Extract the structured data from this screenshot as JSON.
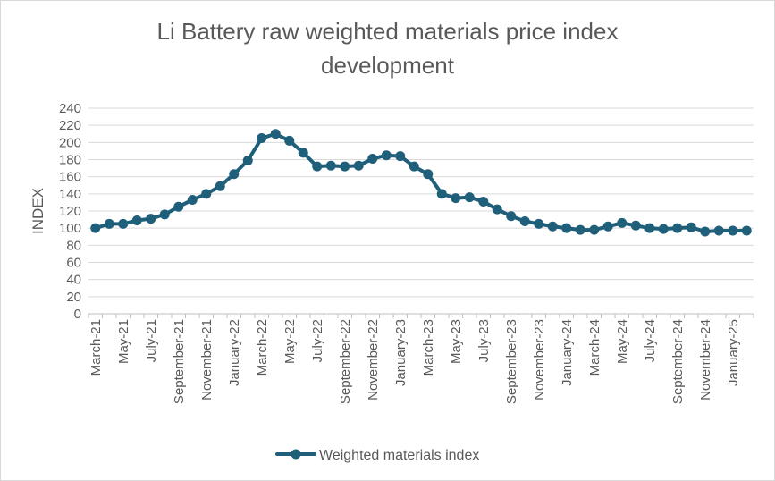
{
  "chart_data": {
    "type": "line",
    "title": "Li Battery raw weighted materials price index\ndevelopment",
    "ylabel": "INDEX",
    "xlabel": "",
    "ylim": [
      0,
      240
    ],
    "ytick_step": 20,
    "grid": true,
    "legend_position": "bottom",
    "color": "#1f5f7a",
    "x_labels": [
      "March-21",
      "May-21",
      "July-21",
      "September-21",
      "November-21",
      "January-22",
      "March-22",
      "May-22",
      "July-22",
      "September-22",
      "November-22",
      "January-23",
      "March-23",
      "May-23",
      "July-23",
      "September-23",
      "November-23",
      "January-24",
      "March-24",
      "May-24",
      "July-24",
      "September-24",
      "November-24",
      "January-25"
    ],
    "series": [
      {
        "name": "Weighted materials index",
        "x": [
          "Mar-21",
          "Apr-21",
          "May-21",
          "Jun-21",
          "Jul-21",
          "Aug-21",
          "Sep-21",
          "Oct-21",
          "Nov-21",
          "Dec-21",
          "Jan-22",
          "Feb-22",
          "Mar-22",
          "Apr-22",
          "May-22",
          "Jun-22",
          "Jul-22",
          "Aug-22",
          "Sep-22",
          "Oct-22",
          "Nov-22",
          "Dec-22",
          "Jan-23",
          "Feb-23",
          "Mar-23",
          "Apr-23",
          "May-23",
          "Jun-23",
          "Jul-23",
          "Aug-23",
          "Sep-23",
          "Oct-23",
          "Nov-23",
          "Dec-23",
          "Jan-24",
          "Feb-24",
          "Mar-24",
          "Apr-24",
          "May-24",
          "Jun-24",
          "Jul-24",
          "Aug-24",
          "Sep-24",
          "Oct-24",
          "Nov-24",
          "Dec-24",
          "Jan-25",
          "Feb-25"
        ],
        "values": [
          100,
          105,
          105,
          109,
          111,
          116,
          125,
          133,
          140,
          149,
          163,
          179,
          205,
          210,
          202,
          188,
          172,
          173,
          172,
          173,
          181,
          185,
          184,
          172,
          163,
          140,
          135,
          136,
          131,
          122,
          114,
          108,
          105,
          102,
          100,
          98,
          98,
          102,
          106,
          103,
          100,
          99,
          100,
          101,
          96,
          97,
          97,
          97
        ]
      }
    ]
  }
}
